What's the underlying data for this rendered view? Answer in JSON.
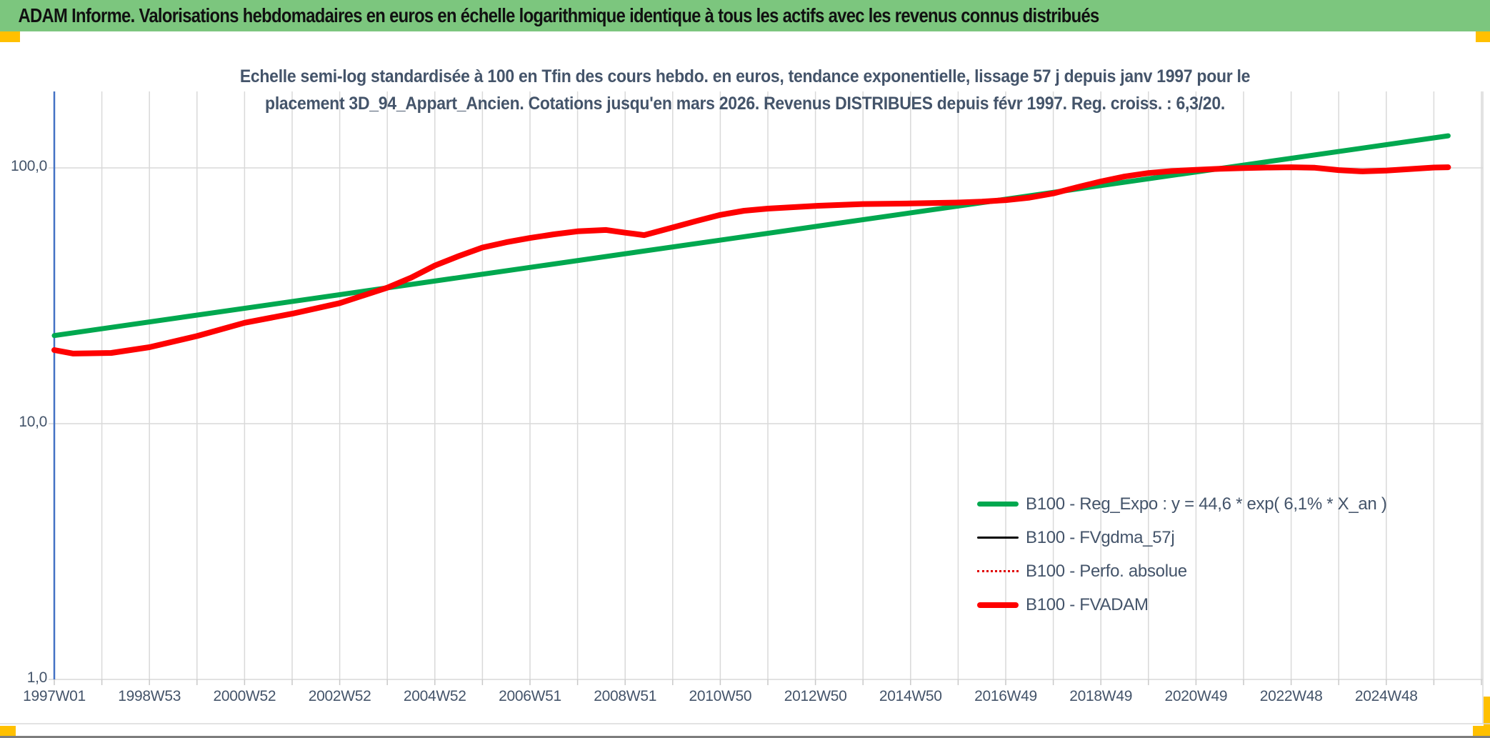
{
  "banner": {
    "title": "ADAM Informe. Valorisations hebdomadaires en euros en échelle logarithmique identique à tous les actifs avec les revenus connus distribués"
  },
  "chart_data": {
    "type": "line",
    "title_line1": "Echelle semi-log standardisée à 100 en Tfin des cours hebdo. en euros, tendance exponentielle, lissage 57 j depuis janv 1997 pour le",
    "title_line2": "placement 3D_94_Appart_Ancien. Cotations jusqu'en mars 2026. Revenus DISTRIBUES depuis févr 1997. Reg. croiss. : 6,3/20.",
    "y_axis": {
      "scale": "log",
      "ticks": [
        "100,0",
        "10,0",
        "1,0"
      ],
      "tick_values": [
        100,
        10,
        1
      ],
      "range": [
        1,
        200
      ]
    },
    "x_axis": {
      "ticks": [
        "1997W01",
        "1998W53",
        "2000W52",
        "2002W52",
        "2004W52",
        "2006W51",
        "2008W51",
        "2010W50",
        "2012W50",
        "2014W50",
        "2016W49",
        "2018W49",
        "2020W49",
        "2022W48",
        "2024W48"
      ],
      "start_year": 1997,
      "years_per_gridline": 1,
      "years_per_label": 2
    },
    "series": [
      {
        "name": "B100 - Reg_Expo",
        "color": "#00A84F",
        "style": "solid",
        "width": 7,
        "points": [
          [
            1997.0,
            22.1
          ],
          [
            2026.3,
            133.5
          ]
        ]
      },
      {
        "name": "B100 - FVgdma_57j",
        "color": "#000000",
        "style": "solid",
        "width": 3,
        "points_same_as": "B100 - FVADAM"
      },
      {
        "name": "B100 - Perfo. absolue",
        "color": "#E00000",
        "style": "dotted",
        "width": 2,
        "points_same_as": "B100 - FVADAM"
      },
      {
        "name": "B100 - FVADAM",
        "color": "#FE0000",
        "style": "solid",
        "width": 8,
        "points": [
          [
            1997.0,
            19.4
          ],
          [
            1997.4,
            18.8
          ],
          [
            1998.2,
            18.9
          ],
          [
            1999.0,
            19.9
          ],
          [
            2000.0,
            22.0
          ],
          [
            2001.0,
            24.8
          ],
          [
            2002.0,
            26.9
          ],
          [
            2003.0,
            29.6
          ],
          [
            2004.0,
            34.0
          ],
          [
            2004.5,
            37.2
          ],
          [
            2005.0,
            41.5
          ],
          [
            2005.5,
            45.2
          ],
          [
            2006.0,
            48.8
          ],
          [
            2006.5,
            51.2
          ],
          [
            2007.0,
            53.2
          ],
          [
            2007.5,
            55.0
          ],
          [
            2008.0,
            56.5
          ],
          [
            2008.6,
            57.2
          ],
          [
            2009.0,
            55.8
          ],
          [
            2009.4,
            54.6
          ],
          [
            2010.0,
            58.5
          ],
          [
            2010.5,
            62.0
          ],
          [
            2011.0,
            65.5
          ],
          [
            2011.5,
            68.0
          ],
          [
            2012.0,
            69.3
          ],
          [
            2013.0,
            71.0
          ],
          [
            2014.0,
            72.2
          ],
          [
            2015.0,
            72.6
          ],
          [
            2016.0,
            73.2
          ],
          [
            2016.5,
            73.8
          ],
          [
            2017.0,
            74.8
          ],
          [
            2017.5,
            76.5
          ],
          [
            2018.0,
            79.5
          ],
          [
            2018.5,
            84.0
          ],
          [
            2019.0,
            88.5
          ],
          [
            2019.5,
            92.5
          ],
          [
            2020.0,
            95.5
          ],
          [
            2020.5,
            97.2
          ],
          [
            2021.0,
            98.3
          ],
          [
            2021.5,
            99.2
          ],
          [
            2022.0,
            99.8
          ],
          [
            2022.5,
            100.3
          ],
          [
            2023.0,
            100.6
          ],
          [
            2023.5,
            100.1
          ],
          [
            2024.0,
            98.0
          ],
          [
            2024.5,
            96.9
          ],
          [
            2025.0,
            97.6
          ],
          [
            2025.5,
            99.0
          ],
          [
            2026.0,
            100.3
          ],
          [
            2026.3,
            100.6
          ]
        ]
      }
    ],
    "legend": [
      {
        "label": "B100 - Reg_Expo : y = 44,6 * exp( 6,1% *  X_an )",
        "series": "B100 - Reg_Expo"
      },
      {
        "label": "B100 - FVgdma_57j",
        "series": "B100 - FVgdma_57j"
      },
      {
        "label": "B100 - Perfo. absolue",
        "series": "B100 - Perfo. absolue"
      },
      {
        "label": "B100 - FVADAM",
        "series": "B100 - FVADAM"
      }
    ],
    "colors": {
      "banner_green": "#7CC67E",
      "accent_gold": "#FFC000",
      "axis_blue": "#4472C4",
      "gridline": "#D9D9D9",
      "text": "#44546A"
    }
  }
}
